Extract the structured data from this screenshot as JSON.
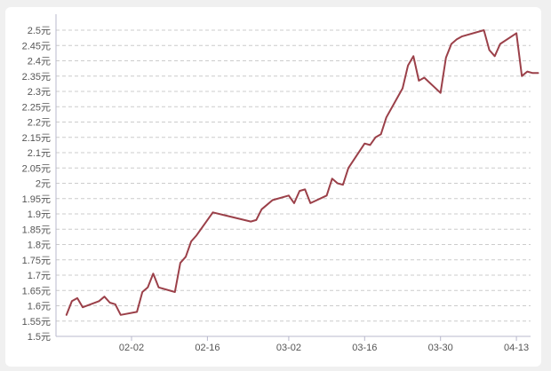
{
  "chart_data": {
    "type": "line",
    "title": "",
    "xlabel": "",
    "ylabel": "",
    "ylim": [
      1.5,
      2.5
    ],
    "grid": true,
    "y_ticks": [
      "1.5元",
      "1.55元",
      "1.6元",
      "1.65元",
      "1.7元",
      "1.75元",
      "1.8元",
      "1.85元",
      "1.9元",
      "1.95元",
      "2元",
      "2.05元",
      "2.1元",
      "2.15元",
      "2.2元",
      "2.25元",
      "2.3元",
      "2.35元",
      "2.4元",
      "2.45元",
      "2.5元"
    ],
    "x_ticks": [
      "02-02",
      "02-16",
      "03-02",
      "03-16",
      "03-30",
      "04-13"
    ],
    "colors": {
      "line": "#9b4049",
      "grid": "#cccccc",
      "axis": "#b8b8cc"
    },
    "series": [
      {
        "x": [
          "01-21",
          "01-22",
          "01-23",
          "01-24",
          "01-27",
          "01-28",
          "01-29",
          "01-30",
          "01-31",
          "02-03",
          "02-04",
          "02-05",
          "02-06",
          "02-07",
          "02-10",
          "02-11",
          "02-12",
          "02-13",
          "02-14",
          "02-17",
          "02-24",
          "02-25",
          "02-26",
          "02-27",
          "02-28",
          "03-02",
          "03-03",
          "03-04",
          "03-05",
          "03-06",
          "03-09",
          "03-10",
          "03-11",
          "03-12",
          "03-13",
          "03-16",
          "03-17",
          "03-18",
          "03-19",
          "03-20",
          "03-23",
          "03-24",
          "03-25",
          "03-26",
          "03-27",
          "03-30",
          "03-31",
          "04-01",
          "04-02",
          "04-03",
          "04-07",
          "04-08",
          "04-09",
          "04-10",
          "04-13",
          "04-14",
          "04-15",
          "04-16",
          "04-17"
        ],
        "values": [
          1.57,
          1.615,
          1.625,
          1.595,
          1.615,
          1.63,
          1.61,
          1.605,
          1.57,
          1.58,
          1.645,
          1.66,
          1.705,
          1.66,
          1.645,
          1.74,
          1.76,
          1.81,
          1.83,
          1.905,
          1.875,
          1.88,
          1.915,
          1.93,
          1.945,
          1.96,
          1.935,
          1.975,
          1.98,
          1.935,
          1.96,
          2.015,
          2.0,
          1.995,
          2.05,
          2.13,
          2.125,
          2.15,
          2.16,
          2.215,
          2.31,
          2.385,
          2.415,
          2.335,
          2.345,
          2.295,
          2.41,
          2.455,
          2.47,
          2.48,
          2.5,
          2.435,
          2.415,
          2.455,
          2.49,
          2.35,
          2.365,
          2.36,
          2.36
        ]
      }
    ]
  }
}
